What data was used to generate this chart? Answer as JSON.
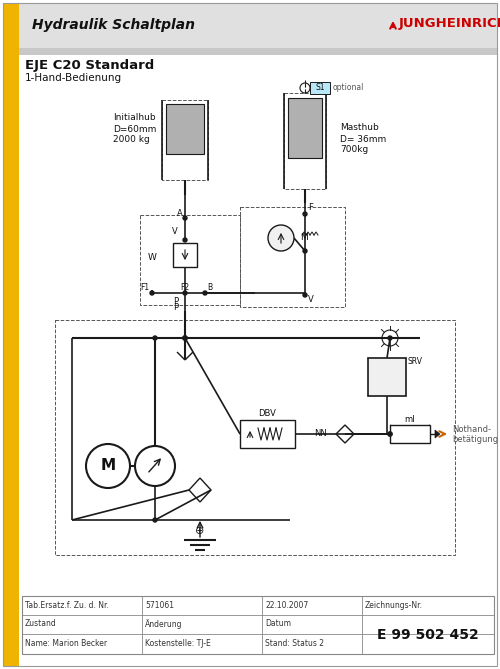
{
  "title_header": "Hydraulik Schaltplan",
  "brand_arrow": "J",
  "brand_text": "UNGHEINRICH",
  "model": "EJE C20 Standard",
  "subtitle": "1-Hand-Bedienung",
  "drawing_number": "E 99 502 452",
  "t_r1c1": "Tab.Ersatz.f. Zu. d. Nr.",
  "t_r1c2": "571061",
  "t_r1c3": "22.10.2007",
  "t_r1c4": "Zeichnungs-Nr.",
  "t_r2c1": "Zustand",
  "t_r2c2": "Änderung",
  "t_r2c3": "Datum",
  "t_r3c1": "Name: Marion Becker",
  "t_r3c2": "Kostenstelle: TJ-E",
  "t_r3c3": "Stand: Status 2",
  "bg_color": "#ffffff",
  "yellow": "#f0b400",
  "line_color": "#1a1a1a",
  "gray_fill": "#b0b0b0",
  "light_gray": "#d8d8d8",
  "s1_fill": "#b8e8f8",
  "header_gray": "#e0e0e0"
}
